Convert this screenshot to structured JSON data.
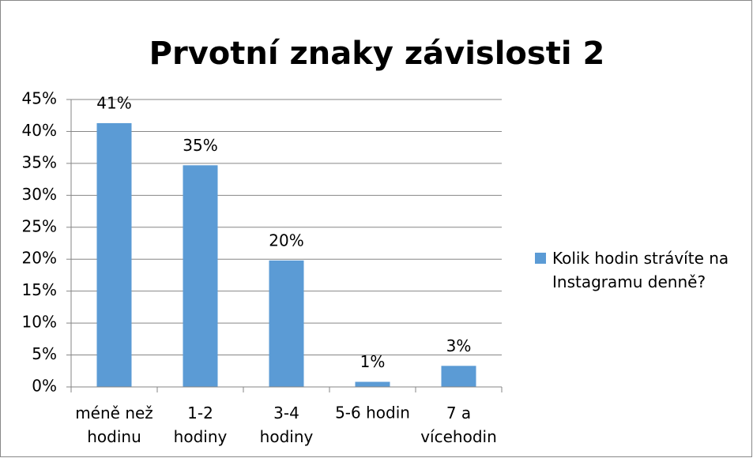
{
  "chart_data": {
    "type": "bar",
    "title": "Prvotní znaky závislosti 2",
    "categories": [
      "méně než\nhodinu",
      "1-2\nhodiny",
      "3-4\nhodiny",
      "5-6 hodin",
      "7 a\nvícehodin"
    ],
    "series": [
      {
        "name": "Kolik hodin strávíte na\nInstagramu denně?",
        "color": "#5b9bd5",
        "values": [
          41.3,
          34.7,
          19.8,
          0.8,
          3.3
        ],
        "value_labels": [
          "41%",
          "35%",
          "20%",
          "1%",
          "3%"
        ]
      }
    ],
    "ylim": [
      0,
      45
    ],
    "yticks": [
      {
        "value": 0,
        "label": "0%"
      },
      {
        "value": 5,
        "label": "5%"
      },
      {
        "value": 10,
        "label": "10%"
      },
      {
        "value": 15,
        "label": "15%"
      },
      {
        "value": 20,
        "label": "20%"
      },
      {
        "value": 25,
        "label": "25%"
      },
      {
        "value": 30,
        "label": "30%"
      },
      {
        "value": 35,
        "label": "35%"
      },
      {
        "value": 40,
        "label": "40%"
      },
      {
        "value": 45,
        "label": "45%"
      }
    ],
    "grid": true,
    "legend": "right"
  }
}
